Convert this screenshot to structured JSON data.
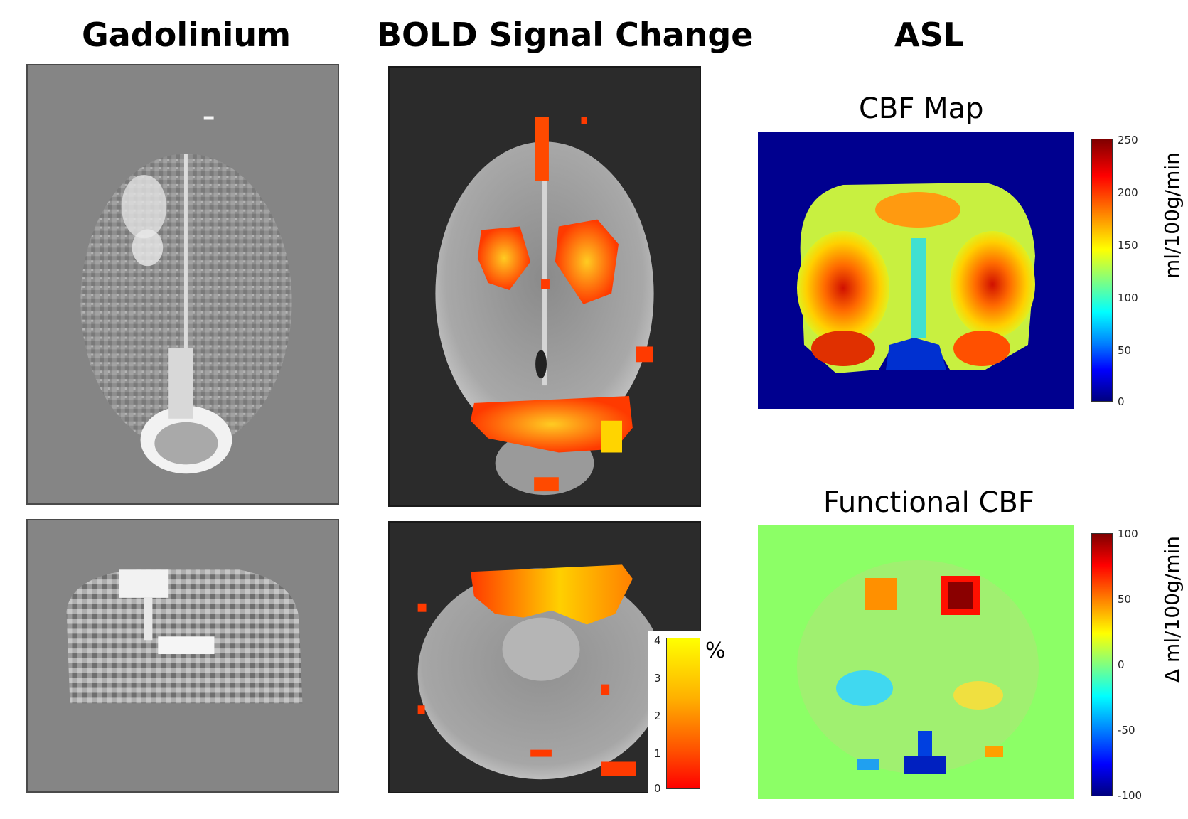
{
  "columns": {
    "gadolinium": {
      "title": "Gadolinium"
    },
    "bold": {
      "title": "BOLD Signal Change",
      "colorbar": {
        "ticks": [
          "4",
          "3",
          "2",
          "1",
          "0"
        ],
        "unit": "%",
        "colors": [
          "#ffff00",
          "#ff0000"
        ]
      }
    },
    "asl": {
      "title": "ASL",
      "cbf_map": {
        "title": "CBF Map",
        "colorbar": {
          "ticks": [
            "250",
            "200",
            "150",
            "100",
            "50",
            "0"
          ],
          "unit": "ml/100g/min"
        }
      },
      "functional_cbf": {
        "title": "Functional CBF",
        "colorbar": {
          "ticks": [
            "100",
            "50",
            "0",
            "-50",
            "-100"
          ],
          "unit": "Δ ml/100g/min"
        }
      }
    }
  }
}
